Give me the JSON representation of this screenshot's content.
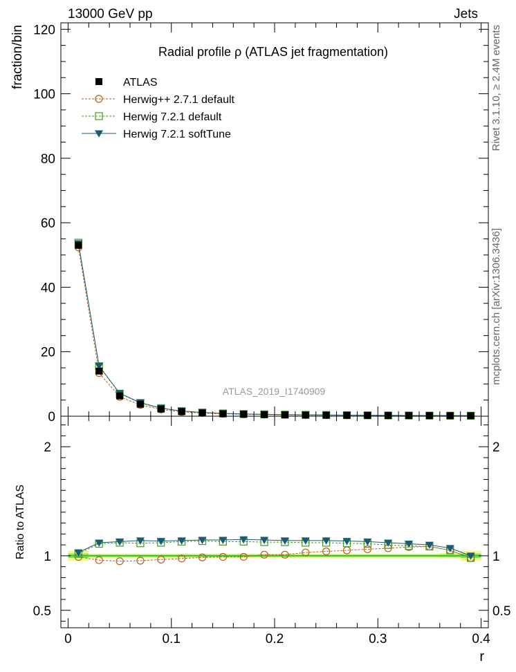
{
  "header": {
    "left": "13000 GeV pp",
    "right": "Jets"
  },
  "side_labels": {
    "rivet": "Rivet 3.1.10, ≥ 2.4M events",
    "mcplots": "mcplots.cern.ch [arXiv:1306.3436]"
  },
  "analysis_id": "ATLAS_2019_I1740909",
  "chart_data": [
    {
      "type": "line",
      "title": "Radial profile  ρ (ATLAS jet fragmentation)",
      "xlabel": "r",
      "ylabel": "fraction/bin",
      "xlim": [
        -0.007,
        0.407
      ],
      "ylim": [
        0,
        122
      ],
      "x_ticks": [
        "0",
        "0.1",
        "0.2",
        "0.3",
        "0.4"
      ],
      "y_ticks": [
        "0",
        "20",
        "40",
        "60",
        "80",
        "100",
        "120"
      ],
      "legend_position": "top-left",
      "x": [
        0.01,
        0.03,
        0.05,
        0.07,
        0.09,
        0.11,
        0.13,
        0.15,
        0.17,
        0.19,
        0.21,
        0.23,
        0.25,
        0.27,
        0.29,
        0.31,
        0.33,
        0.35,
        0.37,
        0.39
      ],
      "series": [
        {
          "name": "ATLAS",
          "color": "#000000",
          "marker": "filled-square",
          "values": [
            53.0,
            14.0,
            6.3,
            3.7,
            2.2,
            1.4,
            1.0,
            0.75,
            0.6,
            0.5,
            0.42,
            0.36,
            0.32,
            0.28,
            0.25,
            0.22,
            0.2,
            0.18,
            0.16,
            0.15
          ]
        },
        {
          "name": "Herwig++ 2.7.1 default",
          "color": "#b35e1d",
          "marker": "open-circle",
          "dash": true,
          "values": [
            52.4,
            13.4,
            6.0,
            3.5,
            2.1,
            1.35,
            0.97,
            0.74,
            0.59,
            0.5,
            0.42,
            0.37,
            0.33,
            0.29,
            0.26,
            0.23,
            0.21,
            0.19,
            0.17,
            0.15
          ]
        },
        {
          "name": "Herwig 7.2.1 default",
          "color": "#3f9b1e",
          "marker": "open-square",
          "dash": true,
          "values": [
            53.8,
            15.5,
            7.0,
            4.1,
            2.5,
            1.6,
            1.15,
            0.86,
            0.68,
            0.57,
            0.48,
            0.41,
            0.37,
            0.32,
            0.28,
            0.24,
            0.22,
            0.2,
            0.17,
            0.15
          ]
        },
        {
          "name": "Herwig 7.2.1 softTune",
          "color": "#1c5a73",
          "marker": "filled-triangle-down",
          "dash": false,
          "values": [
            53.6,
            15.6,
            7.1,
            4.2,
            2.5,
            1.6,
            1.16,
            0.87,
            0.69,
            0.57,
            0.48,
            0.42,
            0.37,
            0.32,
            0.28,
            0.25,
            0.22,
            0.2,
            0.17,
            0.15
          ]
        }
      ]
    },
    {
      "type": "line",
      "ylabel": "Ratio to ATLAS",
      "xlabel": "r",
      "xlim": [
        -0.007,
        0.407
      ],
      "ylim": [
        0.34,
        2.28
      ],
      "y_ticks": [
        "0.5",
        "1",
        "2"
      ],
      "band": {
        "x_edges": [
          0.0,
          0.02,
          0.36,
          0.38,
          0.4
        ],
        "outer_half_width": [
          0.045,
          0.02,
          0.025,
          0.045
        ],
        "inner_half_width": [
          0.02,
          0.01,
          0.012,
          0.02
        ],
        "outer_color": "#f6f58c",
        "inner_color": "#7fe35b",
        "line_color": "#2fb82f"
      },
      "x": [
        0.01,
        0.03,
        0.05,
        0.07,
        0.09,
        0.11,
        0.13,
        0.15,
        0.17,
        0.19,
        0.21,
        0.23,
        0.25,
        0.27,
        0.29,
        0.31,
        0.33,
        0.35,
        0.37,
        0.39
      ],
      "series": [
        {
          "name": "Herwig++ 2.7.1 default",
          "color": "#b35e1d",
          "marker": "open-circle",
          "dash": true,
          "values": [
            0.99,
            0.96,
            0.95,
            0.955,
            0.965,
            0.975,
            0.985,
            0.99,
            0.99,
            1.01,
            1.01,
            1.03,
            1.04,
            1.05,
            1.06,
            1.07,
            1.08,
            1.085,
            1.05,
            0.98
          ]
        },
        {
          "name": "Herwig 7.2.1 default",
          "color": "#3f9b1e",
          "marker": "open-square",
          "dash": true,
          "values": [
            1.02,
            1.11,
            1.12,
            1.115,
            1.12,
            1.13,
            1.135,
            1.13,
            1.13,
            1.125,
            1.125,
            1.12,
            1.12,
            1.115,
            1.11,
            1.1,
            1.09,
            1.085,
            1.05,
            0.98
          ]
        },
        {
          "name": "Herwig 7.2.1 softTune",
          "color": "#1c5a73",
          "marker": "filled-triangle-down",
          "dash": false,
          "values": [
            1.03,
            1.12,
            1.13,
            1.14,
            1.135,
            1.14,
            1.145,
            1.145,
            1.15,
            1.145,
            1.14,
            1.14,
            1.14,
            1.135,
            1.13,
            1.12,
            1.11,
            1.1,
            1.07,
            1.0
          ]
        }
      ]
    }
  ]
}
